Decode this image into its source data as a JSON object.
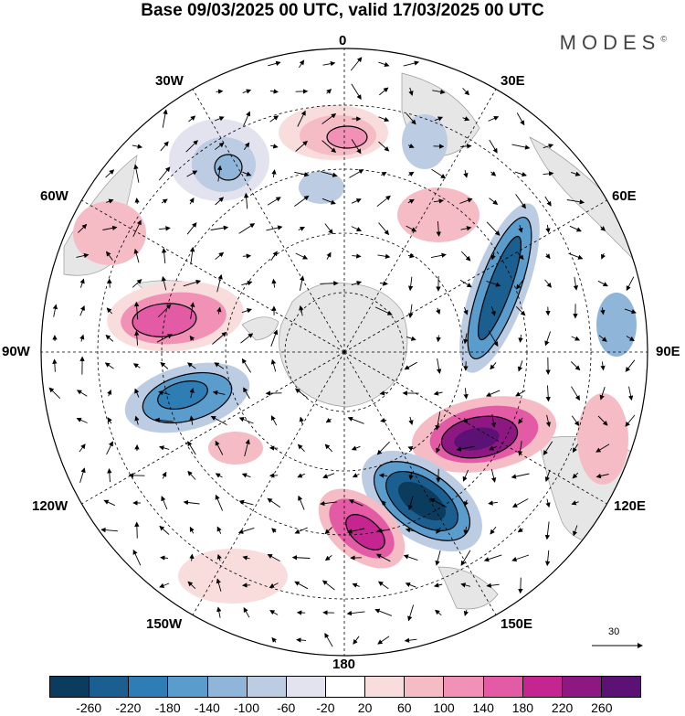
{
  "title": "Base 09/03/2025 00 UTC, valid 17/03/2025 00 UTC",
  "brand": "MODES",
  "brand_mark": "©",
  "longitude_labels": {
    "n0": "0",
    "n30e": "30E",
    "n60e": "60E",
    "n90e": "90E",
    "n120e": "120E",
    "n150e": "150E",
    "n180": "180",
    "n150w": "150W",
    "n120w": "120W",
    "n90w": "90W",
    "n60w": "60W",
    "n30w": "30W"
  },
  "reference_vector": "30",
  "colorbar": {
    "colors": [
      "#0b3c5d",
      "#1a5f8f",
      "#2f7db5",
      "#5a9ccc",
      "#8fb6d9",
      "#bccce3",
      "#e3e3ef",
      "#ffffff",
      "#f9dcdc",
      "#f6bcc6",
      "#f191b6",
      "#e35aa5",
      "#c42591",
      "#8e1882",
      "#5c1175"
    ],
    "ticks": [
      "-260",
      "-220",
      "-180",
      "-140",
      "-100",
      "-60",
      "-20",
      "20",
      "60",
      "100",
      "140",
      "180",
      "220",
      "260"
    ]
  }
}
